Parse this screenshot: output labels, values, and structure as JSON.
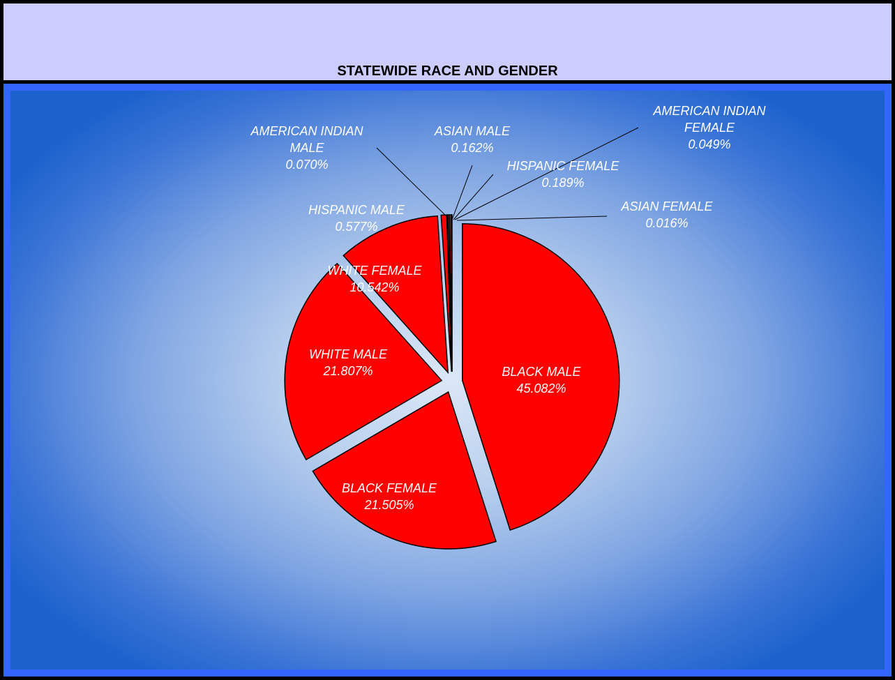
{
  "chart_data": {
    "type": "pie",
    "title": "STATEWIDE RACE AND GENDER",
    "categories": [
      "BLACK MALE",
      "BLACK FEMALE",
      "WHITE MALE",
      "WHITE FEMALE",
      "HISPANIC MALE",
      "AMERICAN INDIAN MALE",
      "ASIAN MALE",
      "HISPANIC FEMALE",
      "AMERICAN INDIAN FEMALE",
      "ASIAN FEMALE"
    ],
    "values": [
      45.082,
      21.505,
      21.807,
      10.542,
      0.577,
      0.07,
      0.162,
      0.189,
      0.049,
      0.016
    ],
    "value_labels": [
      "45.082%",
      "21.505%",
      "21.807%",
      "10.542%",
      "0.577%",
      "0.070%",
      "0.162%",
      "0.189%",
      "0.049%",
      "0.016%"
    ],
    "color": "#ff0000"
  }
}
